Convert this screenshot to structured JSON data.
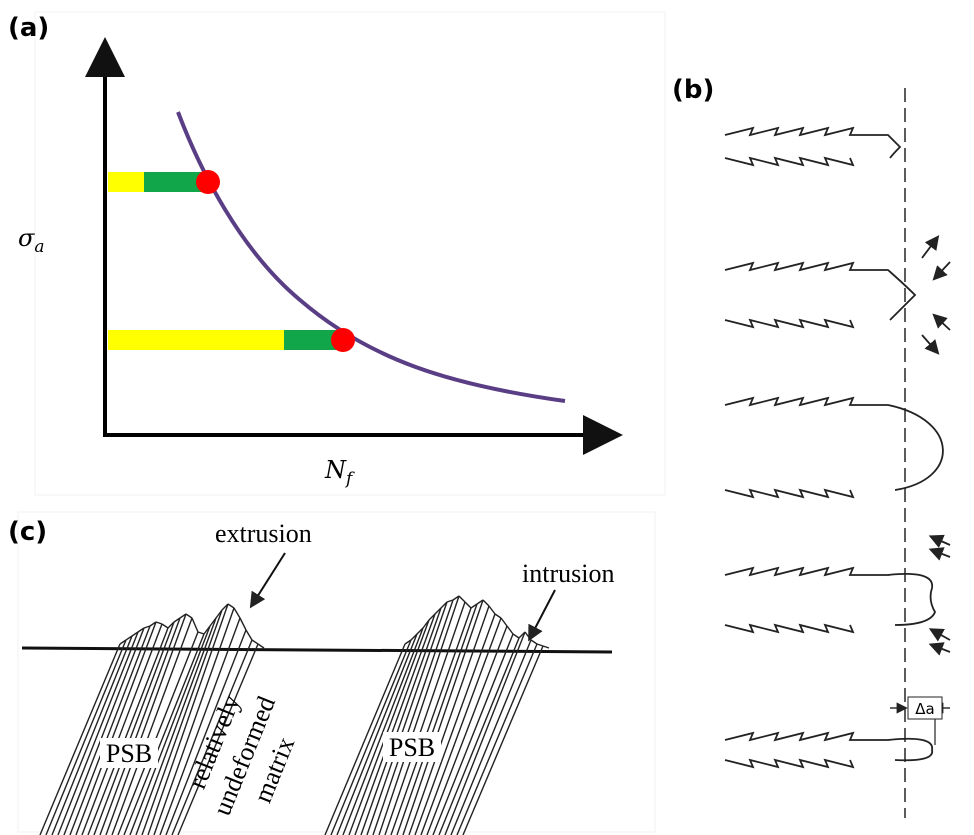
{
  "panels": [
    {
      "label": "(a)",
      "y_label": "σ",
      "y_label_sub": "a",
      "x_label": "N",
      "x_label_sub": "f"
    },
    {
      "label": "(b)",
      "dimension": "Δa"
    },
    {
      "label": "(c)",
      "annotations": [
        "extrusion",
        "intrusion"
      ],
      "regions": [
        "PSB",
        "PSB"
      ],
      "matrix_label": [
        "relatively",
        "undeformed",
        "matrix"
      ]
    }
  ]
}
